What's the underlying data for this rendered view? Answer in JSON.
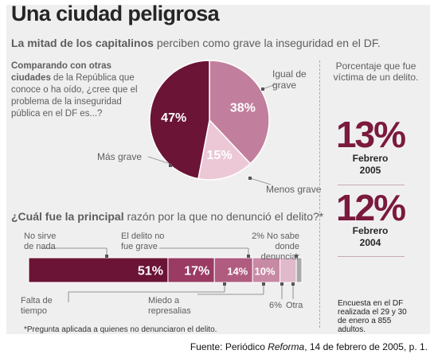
{
  "header": {
    "title": "Una ciudad peligrosa",
    "subtitle_bold": "La mitad de los capitalinos",
    "subtitle_rest": " perciben como grave la inseguridad en el DF."
  },
  "pie_question": {
    "bold": "Comparando con otras ciudades",
    "rest": " de la República que conoce o ha oído, ¿cree que el problema de la inseguridad pública en el DF es...?"
  },
  "pie_labels": {
    "grave": "Más grave",
    "igual_line1": "Igual de",
    "igual_line2": "grave",
    "menos": "Menos grave"
  },
  "right_panel": {
    "caption_line1": "Porcentaje que fue",
    "caption_line2": "víctima de un delito.",
    "stat1": {
      "value": "13%",
      "line1": "Febrero",
      "line2": "2005"
    },
    "stat2": {
      "value": "12%",
      "line1": "Febrero",
      "line2": "2004"
    },
    "survey_note": "Encuesta en el DF realizada el 29 y 30 de enero a 855 adultos."
  },
  "bar_question": {
    "bold": "¿Cuál fue la principal",
    "rest": " razón por la que no denunció el delito?*"
  },
  "bar_labels": {
    "no_sirve_1": "No sirve",
    "no_sirve_2": "de nada",
    "no_grave_1": "El delito no",
    "no_grave_2": "fue grave",
    "no_sabe_1": "2% No sabe donde",
    "no_sabe_2": "denunciar",
    "falta_1": "Falta de",
    "falta_2": "tiempo",
    "miedo_1": "Miedo a",
    "miedo_2": "represalias",
    "seis": "6%",
    "otra": "Otra"
  },
  "footnote": "*Pregunta aplicada a quienes no denunciaron el delito.",
  "source": {
    "prefix": "Fuente: Periódico ",
    "name": "Reforma",
    "suffix": ", 14 de febrero de 2005, p. 1."
  },
  "chart_data": [
    {
      "type": "pie",
      "title": "",
      "labels": [
        "Más grave",
        "Igual de grave",
        "Menos grave"
      ],
      "values": [
        47,
        38,
        15
      ],
      "display": [
        "47%",
        "38%",
        "15%"
      ],
      "colors": [
        "#6b1436",
        "#c27f9d",
        "#ecc8d6"
      ]
    },
    {
      "type": "bar",
      "orientation": "horizontal-stacked",
      "categories": [
        "No sirve de nada",
        "El delito no fue grave",
        "Falta de tiempo",
        "Miedo a represalias",
        "Otra",
        "No sabe donde denunciar"
      ],
      "values": [
        51,
        17,
        14,
        10,
        6,
        2
      ],
      "display": [
        "51%",
        "17%",
        "14%",
        "10%",
        "",
        ""
      ],
      "colors": [
        "#6b1436",
        "#9a3b63",
        "#b05c80",
        "#c889a5",
        "#e0b9ca",
        "#a9a9a9"
      ]
    }
  ]
}
